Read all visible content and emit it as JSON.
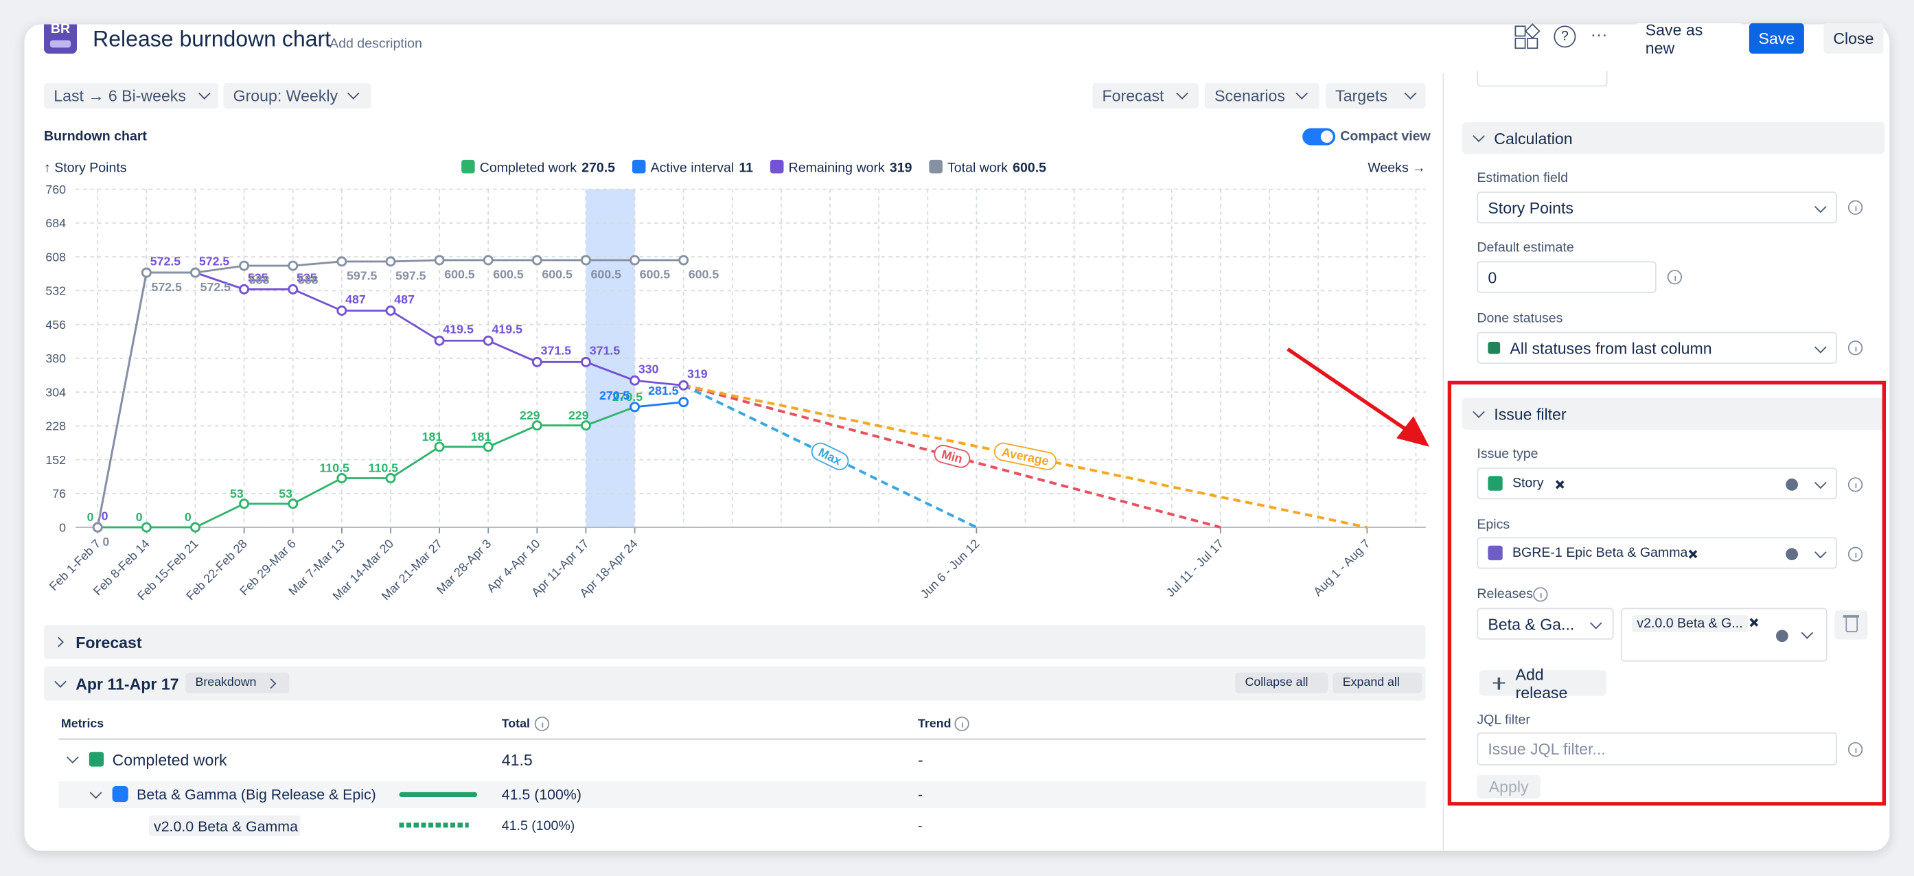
{
  "header": {
    "logo": "BR",
    "title": "Release burndown chart",
    "add_description": "Add description",
    "buttons": [
      "Save as new",
      "Save",
      "Close"
    ]
  },
  "toolbar": {
    "range": "Last → 6 Bi-weeks",
    "group": "Group: Weekly",
    "menus": [
      "Forecast",
      "Scenarios",
      "Targets"
    ]
  },
  "chart_panel": {
    "title": "Burndown chart",
    "compact_view": "Compact view"
  },
  "chart_data": {
    "type": "line",
    "y_label": "↑ Story Points",
    "x_label": "Weeks →",
    "categories": [
      "Feb 1-Feb 7",
      "Feb 8-Feb 14",
      "Feb 15-Feb 21",
      "Feb 22-Feb 28",
      "Feb 29-Mar 6",
      "Mar 7-Mar 13",
      "Mar 14-Mar 20",
      "Mar 21-Mar 27",
      "Mar 28-Apr 3",
      "Apr 4-Apr 10",
      "Apr 11-Apr 17",
      "Apr 18-Apr 24",
      null,
      null,
      null,
      null,
      null,
      null,
      "Jun 6 - Jun 12",
      null,
      null,
      null,
      null,
      "Jul 11 - Jul 17",
      null,
      null,
      "Aug 1 - Aug 7"
    ],
    "series": [
      {
        "name": "Completed work",
        "legend_value": 270.5,
        "color": "#2fb36b",
        "style": "solid",
        "values": [
          0,
          0,
          0,
          53,
          53,
          110.5,
          110.5,
          181,
          181,
          229,
          229,
          270.5,
          null,
          null,
          null,
          null,
          null,
          null,
          null,
          null,
          null,
          null,
          null,
          null,
          null,
          null,
          null
        ]
      },
      {
        "name": "Active interval",
        "legend_value": 11,
        "color": "#1d7afc",
        "style": "solid",
        "values": [
          null,
          null,
          null,
          null,
          null,
          null,
          null,
          null,
          null,
          null,
          null,
          270.5,
          281.5,
          null,
          null,
          null,
          null,
          null,
          null,
          null,
          null,
          null,
          null,
          null,
          null,
          null,
          null
        ]
      },
      {
        "name": "Remaining work",
        "legend_value": 319,
        "color": "#7352d4",
        "style": "solid",
        "values": [
          0,
          572.5,
          572.5,
          535,
          535,
          487,
          487,
          419.5,
          419.5,
          371.5,
          371.5,
          330,
          319,
          null,
          null,
          null,
          null,
          null,
          null,
          null,
          null,
          null,
          null,
          null,
          null,
          null,
          null
        ]
      },
      {
        "name": "Total work",
        "legend_value": 600.5,
        "color": "#8590a2",
        "style": "solid",
        "values": [
          0,
          572.5,
          572.5,
          588,
          588,
          597.5,
          597.5,
          600.5,
          600.5,
          600.5,
          600.5,
          600.5,
          600.5,
          null,
          null,
          null,
          null,
          null,
          null,
          null,
          null,
          null,
          null,
          null,
          null,
          null,
          null
        ]
      },
      {
        "name": "Max",
        "color": "#3aa7e0",
        "style": "dashed",
        "values": [
          null,
          null,
          null,
          null,
          null,
          null,
          null,
          null,
          null,
          null,
          null,
          null,
          319,
          266,
          213,
          160,
          106,
          53,
          0,
          null,
          null,
          null,
          null,
          null,
          null,
          null,
          null
        ]
      },
      {
        "name": "Min",
        "color": "#e5525f",
        "style": "dashed",
        "values": [
          null,
          null,
          null,
          null,
          null,
          null,
          null,
          null,
          null,
          null,
          null,
          null,
          319,
          290,
          261,
          232,
          203,
          174,
          145,
          116,
          87,
          58,
          29,
          0,
          null,
          null,
          null
        ]
      },
      {
        "name": "Average",
        "color": "#f5a623",
        "style": "dashed",
        "values": [
          null,
          null,
          null,
          null,
          null,
          null,
          null,
          null,
          null,
          null,
          null,
          null,
          319,
          296,
          274,
          251,
          228,
          205,
          182,
          160,
          137,
          114,
          91,
          68,
          46,
          23,
          0
        ]
      }
    ],
    "ylim": [
      0,
      760
    ],
    "yticks": [
      0,
      76,
      152,
      228,
      304,
      380,
      456,
      532,
      608,
      684,
      760
    ],
    "grid": true
  },
  "forecast_section": {
    "title": "Forecast"
  },
  "period": {
    "title": "Apr 11-Apr 17",
    "breakdown": "Breakdown",
    "collapse_all": "Collapse all",
    "expand_all": "Expand all"
  },
  "table": {
    "headers": [
      "Metrics",
      "Total",
      "Trend"
    ],
    "rows": [
      [
        "Completed work",
        "41.5",
        "-"
      ],
      [
        "Beta & Gamma (Big Release & Epic)",
        "41.5 (100%)",
        "-"
      ],
      [
        "v2.0.0 Beta & Gamma",
        "41.5 (100%)",
        "-"
      ]
    ]
  },
  "sidebar": {
    "calculation": {
      "title": "Calculation",
      "estimation_field_label": "Estimation field",
      "estimation_field": "Story Points",
      "default_estimate_label": "Default estimate",
      "default_estimate": "0",
      "done_statuses_label": "Done statuses",
      "done_statuses": "All statuses from last column"
    },
    "issue_filter": {
      "title": "Issue filter",
      "issue_type_label": "Issue type",
      "issue_type": "Story",
      "epics_label": "Epics",
      "epic": "BGRE-1 Epic Beta & Gamma",
      "releases_label": "Releases",
      "release_group": "Beta & Ga...",
      "release": "v2.0.0 Beta & G...",
      "add_release": "Add release",
      "jql_label": "JQL filter",
      "jql_placeholder": "Issue JQL filter...",
      "apply": "Apply"
    }
  }
}
